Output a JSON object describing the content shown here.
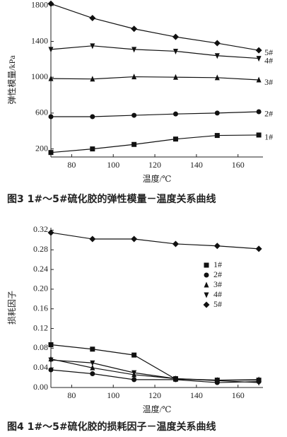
{
  "chart_data": [
    {
      "type": "line",
      "ylabel": "弹性模量/kPa",
      "xlabel": "温度/℃",
      "caption": "图3  1#～5#硫化胶的弹性模量－温度关系曲线",
      "x": [
        70,
        90,
        110,
        130,
        150,
        170
      ],
      "xlim": [
        70,
        172
      ],
      "xticks": [
        80,
        100,
        120,
        140,
        160
      ],
      "ylim": [
        110,
        1830
      ],
      "yticks": [
        200,
        600,
        1000,
        1400,
        1800
      ],
      "labels": "line-end",
      "series": [
        {
          "name": "1#",
          "color": "#111111",
          "marker": "square",
          "values": [
            160,
            200,
            250,
            310,
            350,
            355
          ]
        },
        {
          "name": "2#",
          "color": "#111111",
          "marker": "circle",
          "values": [
            560,
            560,
            575,
            590,
            600,
            615
          ]
        },
        {
          "name": "3#",
          "color": "#111111",
          "marker": "triangle",
          "values": [
            985,
            980,
            1005,
            1000,
            995,
            970
          ]
        },
        {
          "name": "4#",
          "color": "#111111",
          "marker": "triangle-down",
          "values": [
            1310,
            1350,
            1310,
            1290,
            1240,
            1210
          ]
        },
        {
          "name": "5#",
          "color": "#111111",
          "marker": "diamond",
          "values": [
            1820,
            1660,
            1540,
            1450,
            1380,
            1300
          ]
        }
      ]
    },
    {
      "type": "line",
      "ylabel": "损耗因子",
      "xlabel": "温度/℃",
      "caption": "图4  1#～5#硫化胶的损耗因子－温度关系曲线",
      "x": [
        70,
        90,
        110,
        130,
        150,
        170
      ],
      "xlim": [
        70,
        172
      ],
      "xticks": [
        80,
        100,
        120,
        140,
        160
      ],
      "ylim": [
        0,
        0.325
      ],
      "yticks": [
        {
          "value": 0,
          "label": "0.00"
        },
        0.04,
        0.08,
        0.12,
        0.16,
        {
          "value": 0.2,
          "label": "0.20"
        },
        0.24,
        0.28,
        0.32
      ],
      "legend": "center right",
      "series": [
        {
          "name": "1#",
          "color": "#111111",
          "marker": "square",
          "values": [
            0.087,
            0.078,
            0.066,
            0.017,
            0.015,
            0.015
          ]
        },
        {
          "name": "2#",
          "color": "#111111",
          "marker": "circle",
          "values": [
            0.036,
            0.028,
            0.016,
            0.016,
            0.01,
            0.012
          ]
        },
        {
          "name": "3#",
          "color": "#111111",
          "marker": "triangle",
          "values": [
            0.058,
            0.04,
            0.026,
            0.018,
            0.015,
            0.016
          ]
        },
        {
          "name": "4#",
          "color": "#111111",
          "marker": "triangle-down",
          "values": [
            0.056,
            0.05,
            0.03,
            0.018,
            0.014,
            0.01
          ]
        },
        {
          "name": "5#",
          "color": "#111111",
          "marker": "diamond",
          "values": [
            0.315,
            0.302,
            0.302,
            0.292,
            0.288,
            0.282
          ]
        }
      ]
    }
  ]
}
